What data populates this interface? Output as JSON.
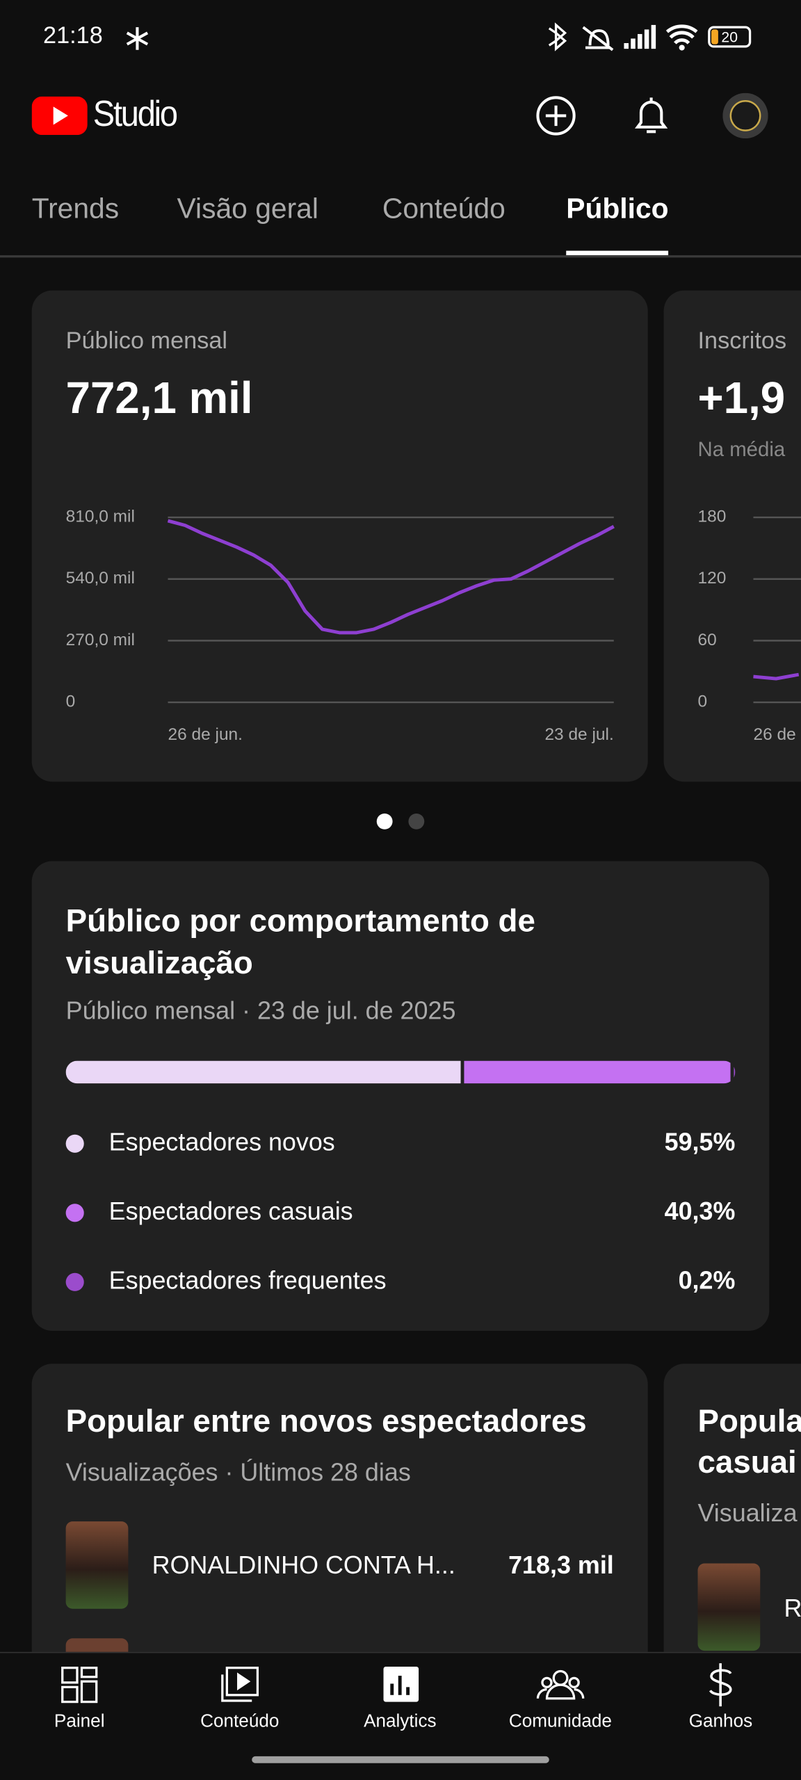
{
  "status_bar": {
    "time": "21:18",
    "battery": "20"
  },
  "header": {
    "app_name": "Studio"
  },
  "tabs": {
    "items": [
      "Trends",
      "Visão geral",
      "Conteúdo",
      "Público"
    ],
    "active": 3
  },
  "chart_data": [
    {
      "type": "line",
      "title": "Público mensal",
      "subtitle": "772,1 mil",
      "categories": [
        "26 de jun.",
        null,
        null,
        null,
        null,
        null,
        null,
        null,
        null,
        null,
        null,
        null,
        null,
        null,
        null,
        null,
        null,
        null,
        null,
        null,
        null,
        null,
        null,
        null,
        null,
        null,
        "23 de jul."
      ],
      "series": [
        {
          "color": "#8e3fd1",
          "values": [
            795,
            775,
            740,
            710,
            680,
            645,
            600,
            525,
            400,
            320,
            305,
            305,
            320,
            350,
            385,
            415,
            445,
            480,
            510,
            535,
            540,
            575,
            615,
            655,
            695,
            730,
            770
          ]
        }
      ],
      "ylim": [
        0,
        810
      ],
      "yticks": [
        {
          "value": 0,
          "label": "0"
        },
        {
          "value": 270,
          "label": "270,0 mil"
        },
        {
          "value": 540,
          "label": "540,0 mil"
        },
        {
          "value": 810,
          "label": "810,0 mil"
        }
      ],
      "grid": true
    },
    {
      "type": "line",
      "title": "Inscritos",
      "subtitle": "+1,9",
      "note": "Na média",
      "categories": [
        "26 de",
        null,
        null
      ],
      "series": [
        {
          "color": "#8e3fd1",
          "values": [
            25,
            23,
            27
          ]
        }
      ],
      "ylim": [
        0,
        180
      ],
      "yticks": [
        0,
        60,
        120,
        180
      ],
      "grid": true
    },
    {
      "type": "stacked_bar",
      "title": "Público por comportamento de visualização",
      "subtitle": "Público mensal · 23 de jul. de 2025",
      "series": [
        {
          "name": "Espectadores novos",
          "color": "#ead7f6",
          "values": [
            59.5
          ],
          "value_labels": [
            "59,5%"
          ]
        },
        {
          "name": "Espectadores casuais",
          "color": "#c471f2",
          "values": [
            40.3
          ],
          "value_labels": [
            "40,3%"
          ]
        },
        {
          "name": "Espectadores frequentes",
          "color": "#9b4ccc",
          "values": [
            0.2
          ],
          "value_labels": [
            "0,2%"
          ]
        }
      ]
    }
  ],
  "popular_cards": [
    {
      "title": "Popular entre novos espectadores",
      "subtitle": "Visualizações · Últimos 28 dias",
      "items": [
        {
          "title": "RONALDINHO CONTA H...",
          "value": "718,3 mil"
        }
      ]
    },
    {
      "title_lines": [
        "Popula",
        "casuai"
      ],
      "subtitle": "Visualiza",
      "items": [
        {
          "title": "R"
        }
      ]
    }
  ],
  "bottom_nav": [
    "Painel",
    "Conteúdo",
    "Analytics",
    "Comunidade",
    "Ganhos"
  ]
}
